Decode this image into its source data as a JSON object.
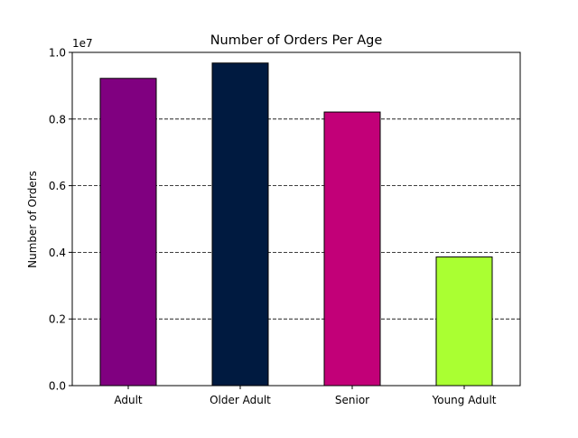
{
  "chart_data": {
    "type": "bar",
    "title": "Number of Orders Per Age",
    "xlabel": "",
    "ylabel": "Number of Orders",
    "scale_label": "1e7",
    "categories": [
      "Adult",
      "Older Adult",
      "Senior",
      "Young Adult"
    ],
    "values": [
      9220000,
      9680000,
      8210000,
      3860000
    ],
    "bar_colors": [
      "#800080",
      "#001a40",
      "#c20078",
      "#aaff32"
    ],
    "edge_color": "#000000",
    "ylim": [
      0,
      10000000
    ],
    "yticks": [
      0,
      2000000,
      4000000,
      6000000,
      8000000,
      10000000
    ],
    "ytick_labels": [
      "0.0",
      "0.2",
      "0.4",
      "0.6",
      "0.8",
      "1.0"
    ],
    "grid": {
      "axis": "y",
      "style": "dashed",
      "color": "#000000"
    },
    "legend": "none"
  }
}
